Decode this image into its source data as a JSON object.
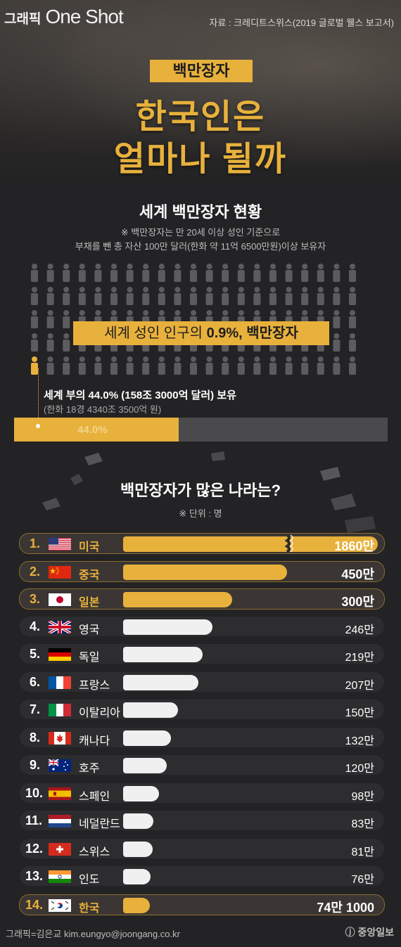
{
  "header": {
    "brand_small": "그래픽",
    "brand_large": "One Shot",
    "source": "자료 : 크레디트스위스(2019 글로벌 웰스 보고서)"
  },
  "hero": {
    "tag": "백만장자",
    "title_line1": "한국인은",
    "title_line2": "얼마나 될까"
  },
  "world": {
    "heading": "세계 백만장자 현황",
    "note_line1": "※ 백만장자는 만 20세 이상 성인 기준으로",
    "note_line2": "부채를 뺀 총 자산 100만 달러(한화 약 11억 6500만원)이상 보유자",
    "banner_prefix": "세계 성인 인구의 ",
    "banner_highlight": "0.9%, 백만장자",
    "wealth_line1": "세계 부의 44.0% (158조 3000억 달러) 보유",
    "wealth_line2": "(한화 18경 4340조 3500억 원)",
    "share_label": "44.0%",
    "share_value": 44.0
  },
  "ranking": {
    "heading": "백만장자가 많은 나라는?",
    "unit_note": "※ 단위 : 명"
  },
  "colors": {
    "accent": "#e8b13c",
    "background": "#232224",
    "bar_neutral": "#f0f0f0"
  },
  "chart_data": {
    "type": "bar",
    "unit": "명",
    "categories": [
      "미국",
      "중국",
      "일본",
      "영국",
      "독일",
      "프랑스",
      "이탈리아",
      "캐나다",
      "호주",
      "스페인",
      "네덜란드",
      "스위스",
      "인도",
      "한국"
    ],
    "ranks": [
      "1.",
      "2.",
      "3.",
      "4.",
      "5.",
      "6.",
      "7.",
      "8.",
      "9.",
      "10.",
      "11.",
      "12.",
      "13.",
      "14."
    ],
    "values": [
      18600000,
      4500000,
      3000000,
      2460000,
      2190000,
      2070000,
      1500000,
      1320000,
      1200000,
      980000,
      830000,
      810000,
      760000,
      741000
    ],
    "value_labels": [
      "1860만",
      "450만",
      "300만",
      "246만",
      "219만",
      "207만",
      "150만",
      "132만",
      "120만",
      "98만",
      "83만",
      "81만",
      "76만",
      "74만 1000"
    ],
    "highlighted": [
      true,
      true,
      true,
      false,
      false,
      false,
      false,
      false,
      false,
      false,
      false,
      false,
      false,
      true
    ],
    "flag_icons": [
      "us-flag-icon",
      "china-flag-icon",
      "japan-flag-icon",
      "uk-flag-icon",
      "germany-flag-icon",
      "france-flag-icon",
      "italy-flag-icon",
      "canada-flag-icon",
      "australia-flag-icon",
      "spain-flag-icon",
      "netherlands-flag-icon",
      "switzerland-flag-icon",
      "india-flag-icon",
      "korea-flag-icon"
    ],
    "axis_break_on_first_bar": true
  },
  "footer": {
    "credit": "그래픽=김은교 kim.eungyo@joongang.co.kr",
    "logo": "ⓙ 중앙일보"
  }
}
